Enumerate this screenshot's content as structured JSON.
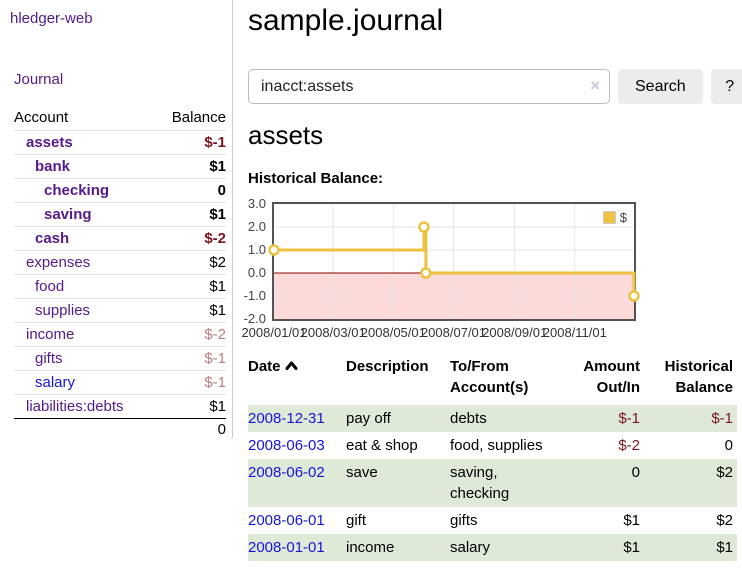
{
  "app": {
    "brand": "hledger-web"
  },
  "sidebar": {
    "journal_link": "Journal",
    "accounts": {
      "header_account": "Account",
      "header_balance": "Balance",
      "rows": [
        {
          "name": "assets",
          "depth": 1,
          "bold": true,
          "balance": "$-1",
          "neg": "strong"
        },
        {
          "name": "bank",
          "depth": 2,
          "bold": true,
          "balance": "$1",
          "neg": "none"
        },
        {
          "name": "checking",
          "depth": 3,
          "bold": true,
          "balance": "0",
          "neg": "none"
        },
        {
          "name": "saving",
          "depth": 3,
          "bold": true,
          "balance": "$1",
          "neg": "none"
        },
        {
          "name": "cash",
          "depth": 2,
          "bold": true,
          "balance": "$-2",
          "neg": "strong"
        },
        {
          "name": "expenses",
          "depth": 1,
          "bold": false,
          "balance": "$2",
          "neg": "none"
        },
        {
          "name": "food",
          "depth": 2,
          "bold": false,
          "balance": "$1",
          "neg": "none"
        },
        {
          "name": "supplies",
          "depth": 2,
          "bold": false,
          "balance": "$1",
          "neg": "none"
        },
        {
          "name": "income",
          "depth": 1,
          "bold": false,
          "balance": "$-2",
          "neg": "soft"
        },
        {
          "name": "gifts",
          "depth": 2,
          "bold": false,
          "balance": "$-1",
          "neg": "soft"
        },
        {
          "name": "salary",
          "depth": 2,
          "bold": false,
          "balance": "$-1",
          "neg": "soft",
          "unvisited": true
        },
        {
          "name": "liabilities:debts",
          "depth": 1,
          "bold": false,
          "balance": "$1",
          "neg": "none"
        }
      ],
      "total": "0"
    }
  },
  "main": {
    "title": "sample.journal",
    "search": {
      "value": "inacct:assets",
      "clear_icon": "×",
      "search_button": "Search",
      "help_button": "?"
    },
    "account_heading": "assets",
    "section_label": "Historical Balance:"
  },
  "chart_data": {
    "type": "line",
    "step": true,
    "title": "Historical Balance:",
    "series": [
      {
        "name": "$",
        "color": "#edc240",
        "points": [
          {
            "x": "2008-01-01",
            "y": 1
          },
          {
            "x": "2008-06-01",
            "y": 2
          },
          {
            "x": "2008-06-02",
            "y": 2
          },
          {
            "x": "2008-06-03",
            "y": 0
          },
          {
            "x": "2008-12-31",
            "y": -1
          }
        ]
      }
    ],
    "ylim": [
      -2,
      3
    ],
    "yticks": [
      3.0,
      2.0,
      1.0,
      0.0,
      -1.0,
      -2.0
    ],
    "xticks": [
      "2008/01/01",
      "2008/03/01",
      "2008/05/01",
      "2008/07/01",
      "2008/09/01",
      "2008/11/01"
    ],
    "legend": {
      "label": "$",
      "position": "top-right"
    },
    "grid": true,
    "grid_color": "#e6e6e6",
    "zero_line_color": "#8b0000",
    "negative_band_color": "#fcdada"
  },
  "register": {
    "headers": {
      "date": "Date",
      "sort_icon": "chevron-up",
      "description": "Description",
      "accounts": "To/From Account(s)",
      "amount": "Amount Out/In",
      "balance": "Historical Balance"
    },
    "rows": [
      {
        "date": "2008-12-31",
        "description": "pay off",
        "accounts": "debts",
        "amount": "$-1",
        "amount_neg": true,
        "balance": "$-1",
        "balance_neg": true,
        "highlight": true
      },
      {
        "date": "2008-06-03",
        "description": "eat & shop",
        "accounts": "food, supplies",
        "amount": "$-2",
        "amount_neg": true,
        "balance": "0",
        "balance_neg": false,
        "highlight": false
      },
      {
        "date": "2008-06-02",
        "description": "save",
        "accounts": "saving,\nchecking",
        "amount": "0",
        "amount_neg": false,
        "balance": "$2",
        "balance_neg": false,
        "highlight": true
      },
      {
        "date": "2008-06-01",
        "description": "gift",
        "accounts": "gifts",
        "amount": "$1",
        "amount_neg": false,
        "balance": "$2",
        "balance_neg": false,
        "highlight": false
      },
      {
        "date": "2008-01-01",
        "description": "income",
        "accounts": "salary",
        "amount": "$1",
        "amount_neg": false,
        "balance": "$1",
        "balance_neg": false,
        "highlight": true
      }
    ]
  },
  "colors": {
    "link_purple": "#551a8b",
    "link_blue": "#1515d6",
    "negative_strong": "#7d1420",
    "negative_soft": "#bb7d7d",
    "negative_table": "#7d1420",
    "row_green": "#dee9d8",
    "series_yellow": "#edc240"
  }
}
